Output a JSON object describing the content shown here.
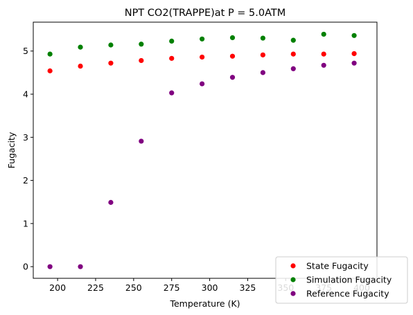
{
  "chart_data": {
    "type": "scatter",
    "title": "NPT CO2(TRAPPE)at P = 5.0ATM",
    "xlabel": "Temperature (K)",
    "ylabel": "Fugacity",
    "xlim": [
      184,
      410
    ],
    "ylim": [
      -0.27,
      5.67
    ],
    "xticks": [
      200,
      225,
      250,
      275,
      300,
      325,
      350,
      375,
      400
    ],
    "yticks": [
      0,
      1,
      2,
      3,
      4,
      5
    ],
    "grid": false,
    "legend_position": "bottom-right",
    "x": [
      195,
      215,
      235,
      255,
      275,
      295,
      315,
      335,
      355,
      375,
      395
    ],
    "series": [
      {
        "name": "State Fugacity",
        "color": "#ff0000",
        "values": [
          4.54,
          4.65,
          4.72,
          4.78,
          4.83,
          4.86,
          4.88,
          4.91,
          4.93,
          4.93,
          4.94
        ]
      },
      {
        "name": "Simulation Fugacity",
        "color": "#008000",
        "values": [
          4.93,
          5.09,
          5.14,
          5.16,
          5.23,
          5.28,
          5.31,
          5.3,
          5.25,
          5.39,
          5.36
        ]
      },
      {
        "name": "Reference Fugacity",
        "color": "#800080",
        "values": [
          0.0,
          0.0,
          1.49,
          2.91,
          4.03,
          4.24,
          4.39,
          4.5,
          4.59,
          4.67,
          4.72
        ]
      }
    ]
  }
}
